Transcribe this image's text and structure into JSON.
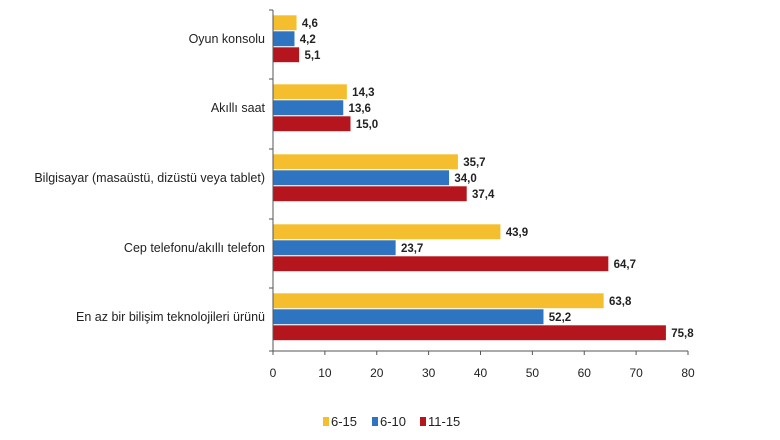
{
  "chart_data": {
    "type": "bar",
    "orientation": "horizontal",
    "categories": [
      "Oyun konsolu",
      "Akıllı saat",
      "Bilgisayar (masaüstü, dizüstü veya tablet)",
      "Cep telefonu/akıllı telefon",
      "En az bir bilişim teknolojileri ürünü"
    ],
    "series": [
      {
        "name": "6-15",
        "color": "#F5BE2E",
        "values": [
          4.6,
          14.3,
          35.7,
          43.9,
          63.8
        ],
        "labels": [
          "4,6",
          "14,3",
          "35,7",
          "43,9",
          "63,8"
        ]
      },
      {
        "name": "6-10",
        "color": "#2E74C0",
        "values": [
          4.2,
          13.6,
          34.0,
          23.7,
          52.2
        ],
        "labels": [
          "4,2",
          "13,6",
          "34,0",
          "23,7",
          "52,2"
        ]
      },
      {
        "name": "11-15",
        "color": "#B5161E",
        "values": [
          5.1,
          15.0,
          37.4,
          64.7,
          75.8
        ],
        "labels": [
          "5,1",
          "15,0",
          "37,4",
          "64,7",
          "75,8"
        ]
      }
    ],
    "xlim": [
      0,
      80
    ],
    "xticks": [
      "0",
      "10",
      "20",
      "30",
      "40",
      "50",
      "60",
      "70",
      "80"
    ],
    "title": "",
    "xlabel": "",
    "ylabel": "",
    "legend": "bottom-center",
    "grid": false
  }
}
